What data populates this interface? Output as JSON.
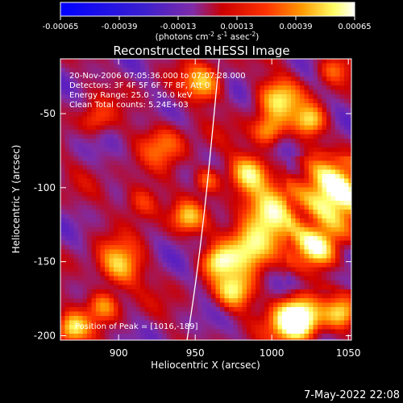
{
  "colorbar": {
    "ticks": [
      "-0.00065",
      "-0.00039",
      "-0.00013",
      "0.00013",
      "0.00039",
      "0.00065"
    ],
    "units_line": {
      "pre": "(photons cm",
      "sup1": "-2",
      "mid1": " s",
      "sup2": "-1",
      "mid2": " asec",
      "sup3": "-2",
      "post": ")"
    }
  },
  "chart_data": {
    "type": "heatmap",
    "title": "Reconstructed RHESSI Image",
    "xlabel": "Heliocentric X (arcsec)",
    "ylabel": "Heliocentric Y (arcsec)",
    "xlim": [
      862,
      1052
    ],
    "ylim": [
      -203,
      -13
    ],
    "x_ticks": [
      900,
      950,
      1000,
      1050
    ],
    "y_ticks": [
      -50,
      -100,
      -150,
      -200
    ],
    "color_range": [
      -0.00065,
      0.00065
    ],
    "colormap": [
      "#0000ff",
      "#7f2ca8",
      "#cc0000",
      "#ff3300",
      "#ff9900",
      "#ffff66",
      "#ffffff"
    ],
    "annotations": [
      "20-Nov-2006 07:05:36.000 to 07:07:28.000",
      "Detectors: 3F 4F 5F 6F 7F 8F, Att 0",
      "Energy Range: 25.0 - 50.0 keV",
      "Clean    Total counts: 5.24E+03"
    ],
    "peak_label": "Position of Peak = [1016,-189]",
    "peak": [
      1016,
      -189
    ]
  },
  "footer": {
    "timestamp": "7-May-2022 22:08"
  }
}
